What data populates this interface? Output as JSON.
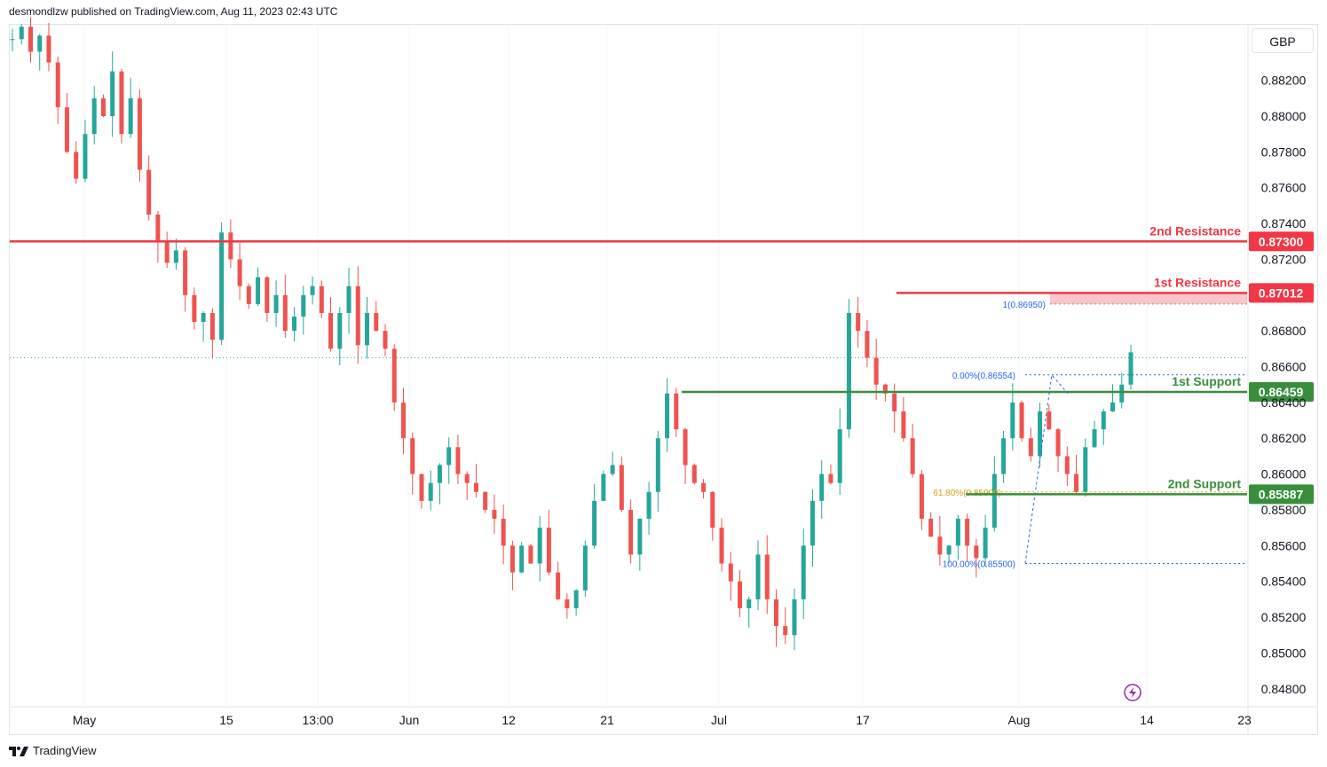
{
  "header": {
    "publisher": "desmondlzw published on TradingView.com, Aug 11, 2023 02:43 UTC"
  },
  "currency_button": "GBP",
  "footer": {
    "brand": "TradingView"
  },
  "colors": {
    "up": "#26a69a",
    "down": "#ef5350",
    "resistance": "#f23645",
    "support": "#388e3c",
    "fib": "#2962ff",
    "fib_mid": "#f2a900",
    "grid": "#f0f3fa"
  },
  "chart_data": {
    "type": "candlestick",
    "symbol_currency": "GBP",
    "price_ticks": [
      "0.88200",
      "0.88000",
      "0.87800",
      "0.87600",
      "0.87400",
      "0.87200",
      "0.86800",
      "0.86600",
      "0.86400",
      "0.86200",
      "0.86000",
      "0.85800",
      "0.85600",
      "0.85400",
      "0.85200",
      "0.85000",
      "0.84800"
    ],
    "time_ticks": [
      "May",
      "15",
      "13:00",
      "Jun",
      "12",
      "21",
      "Jul",
      "17",
      "Aug",
      "14",
      "23"
    ],
    "ylim": [
      0.8475,
      0.8852
    ],
    "levels": [
      {
        "name": "2nd Resistance",
        "price": "0.87300",
        "kind": "resistance",
        "value": 0.873
      },
      {
        "name": "1st Resistance",
        "price": "0.87012",
        "kind": "resistance",
        "value": 0.87012
      },
      {
        "name": "1st Support",
        "price": "0.86459",
        "kind": "support",
        "value": 0.86459
      },
      {
        "name": "2nd Support",
        "price": "0.85887",
        "kind": "support",
        "value": 0.85887
      }
    ],
    "fib": [
      {
        "label": "1(0.86950)",
        "value": 0.8695
      },
      {
        "label": "0.00%(0.86554)",
        "value": 0.86554
      },
      {
        "label": "61.80%(0.85900)",
        "value": 0.859
      },
      {
        "label": "100.00%(0.85500)",
        "value": 0.855
      }
    ],
    "last_price": 0.8665,
    "candles_close_path": [
      0.8843,
      0.885,
      0.8836,
      0.8845,
      0.883,
      0.8805,
      0.878,
      0.8765,
      0.879,
      0.881,
      0.88,
      0.8825,
      0.879,
      0.881,
      0.877,
      0.8745,
      0.873,
      0.8718,
      0.8725,
      0.87,
      0.8685,
      0.869,
      0.8675,
      0.8735,
      0.872,
      0.8705,
      0.8695,
      0.871,
      0.869,
      0.87,
      0.868,
      0.8688,
      0.87,
      0.8705,
      0.869,
      0.867,
      0.869,
      0.8705,
      0.8672,
      0.869,
      0.868,
      0.867,
      0.864,
      0.862,
      0.86,
      0.8585,
      0.8595,
      0.8605,
      0.8615,
      0.86,
      0.8595,
      0.859,
      0.858,
      0.8575,
      0.856,
      0.8545,
      0.856,
      0.855,
      0.857,
      0.8545,
      0.853,
      0.8525,
      0.8535,
      0.856,
      0.8585,
      0.86,
      0.8605,
      0.858,
      0.8555,
      0.8575,
      0.859,
      0.862,
      0.8645,
      0.8625,
      0.8605,
      0.8595,
      0.859,
      0.857,
      0.855,
      0.854,
      0.8525,
      0.853,
      0.8555,
      0.853,
      0.8515,
      0.851,
      0.853,
      0.856,
      0.8585,
      0.86,
      0.8595,
      0.8625,
      0.869,
      0.868,
      0.8665,
      0.865,
      0.8645,
      0.8635,
      0.862,
      0.86,
      0.8575,
      0.8565,
      0.8555,
      0.856,
      0.8575,
      0.856,
      0.8553,
      0.857,
      0.86,
      0.862,
      0.864,
      0.862,
      0.861,
      0.8635,
      0.8625,
      0.861,
      0.86,
      0.859,
      0.8615,
      0.8625,
      0.8635,
      0.864,
      0.865,
      0.8668
    ]
  }
}
